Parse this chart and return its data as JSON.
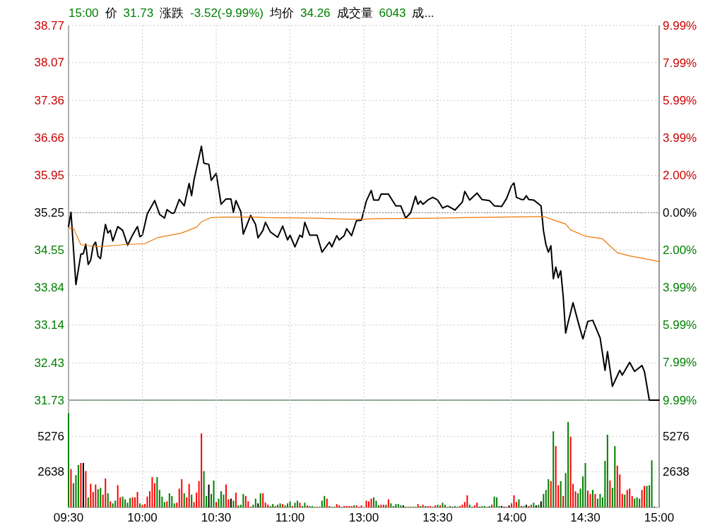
{
  "chart_data": [
    {
      "type": "line",
      "annotations": [
        "15:00",
        "价",
        "31.73",
        "涨跌",
        "-3.52(-9.99%)",
        "均价",
        "34.26",
        "成交量",
        "6043",
        "成..."
      ],
      "categories": [
        null,
        null,
        null,
        null,
        null,
        null,
        null,
        null,
        null,
        null,
        null,
        null,
        null,
        null,
        null,
        null,
        null,
        null,
        null,
        null,
        null,
        null,
        null,
        null,
        null,
        null,
        null,
        null,
        null,
        null,
        null,
        null,
        null,
        null,
        null,
        null,
        null,
        null,
        null,
        null,
        null,
        null,
        null,
        null,
        null,
        null,
        null,
        null,
        null,
        null,
        null,
        null,
        null,
        null,
        null,
        null,
        null,
        null,
        null,
        null,
        null,
        null,
        null,
        null,
        null,
        null,
        null,
        null,
        null,
        null,
        null,
        null,
        null,
        null,
        null,
        null,
        null,
        null,
        null,
        null,
        null,
        null,
        null,
        null,
        null,
        null,
        null,
        null,
        null,
        null,
        null,
        null,
        null,
        null,
        null,
        null,
        null,
        null,
        null,
        null,
        null,
        null,
        null,
        null,
        null,
        null,
        null,
        null,
        null,
        null,
        null,
        null,
        null,
        null,
        null,
        null,
        null,
        null,
        null,
        null,
        null,
        null,
        null,
        null,
        null,
        null,
        null,
        null,
        null,
        null,
        null,
        null,
        null,
        null,
        null,
        null,
        null,
        null,
        null,
        null,
        null,
        null,
        null,
        null,
        null,
        null,
        null,
        null,
        null,
        null,
        null,
        null,
        null,
        null,
        null,
        null,
        null,
        null,
        null,
        null,
        null,
        null,
        null,
        null,
        null,
        null,
        null,
        null,
        null,
        null,
        null,
        null,
        null,
        null,
        null,
        null,
        null,
        null,
        null,
        null,
        null,
        null,
        null,
        null,
        null,
        null,
        null,
        null,
        null,
        null,
        null,
        null,
        null,
        null,
        null,
        null,
        null,
        null,
        null,
        null,
        null,
        null,
        null,
        null,
        null,
        null,
        null,
        null,
        null,
        null,
        null,
        null,
        null,
        null,
        null,
        null,
        null,
        null,
        null,
        null,
        null,
        null,
        null,
        null,
        null,
        null,
        null,
        null,
        null,
        null,
        null,
        null,
        null,
        null,
        null,
        null,
        null,
        null,
        null,
        null,
        null
      ],
      "ylim": [
        31.73,
        38.77
      ],
      "y2lim": [
        -9.99,
        9.99
      ],
      "grid": true,
      "tick_labels": "y",
      "yticks": [
        31.73,
        32.43,
        33.14,
        33.84,
        34.55,
        35.25,
        35.95,
        36.66,
        37.36,
        38.07,
        38.77
      ],
      "y2ticks": [
        {
          "value": -9.99,
          "label": "9.99%"
        },
        {
          "value": -7.99,
          "label": "7.99%"
        },
        {
          "value": -5.99,
          "label": "5.99%"
        },
        {
          "value": -3.99,
          "label": "3.99%"
        },
        {
          "value": -2.0,
          "label": "2.00%"
        },
        {
          "value": 0,
          "label": "0.00%"
        },
        {
          "value": 2.0,
          "label": "2.00%"
        },
        {
          "value": 3.99,
          "label": "3.99%"
        },
        {
          "value": 5.99,
          "label": "5.99%"
        },
        {
          "value": 7.99,
          "label": "7.99%"
        },
        {
          "value": 9.99,
          "label": "9.99%"
        }
      ],
      "ref_lines": [
        {
          "axis": "y",
          "value": 35.25,
          "color": "#808080",
          "line_style": "dotted"
        }
      ],
      "series": [
        {
          "color": "#000000",
          "values": [
            34.99,
            35.26,
            null,
            33.9,
            null,
            34.47,
            34.48,
            34.66,
            34.28,
            34.36,
            34.63,
            34.7,
            34.43,
            34.39,
            34.74,
            35.03,
            34.87,
            34.92,
            34.72,
            null,
            34.99,
            null,
            34.92,
            null,
            34.64,
            null,
            34.83,
            null,
            34.99,
            34.8,
            34.83,
            null,
            35.23,
            null,
            null,
            35.48,
            null,
            35.22,
            null,
            35.15,
            35.31,
            null,
            35.24,
            35.25,
            null,
            35.5,
            null,
            35.38,
            null,
            35.8,
            35.57,
            35.87,
            null,
            null,
            36.5,
            36.18,
            null,
            36.16,
            35.86,
            null,
            35.99,
            null,
            35.41,
            null,
            35.51,
            null,
            35.51,
            35.26,
            35.48,
            null,
            35.27,
            34.85,
            null,
            null,
            35.2,
            null,
            35.03,
            34.78,
            null,
            34.92,
            35.07,
            null,
            34.89,
            null,
            null,
            34.79,
            null,
            35.0,
            null,
            34.74,
            34.83,
            null,
            34.61,
            null,
            34.83,
            34.79,
            35.07,
            null,
            34.83,
            null,
            null,
            34.83,
            null,
            34.51,
            null,
            null,
            34.7,
            34.61,
            null,
            34.82,
            34.74,
            null,
            34.82,
            34.95,
            null,
            34.82,
            null,
            35.1,
            null,
            35.11,
            null,
            35.47,
            null,
            35.67,
            35.49,
            null,
            35.49,
            35.6,
            null,
            null,
            35.6,
            null,
            null,
            35.38,
            null,
            35.38,
            null,
            35.15,
            null,
            35.25,
            null,
            35.56,
            35.41,
            35.47,
            35.41,
            null,
            35.49,
            null,
            35.54,
            null,
            35.49,
            null,
            35.34,
            null,
            35.38,
            null,
            null,
            35.3,
            null,
            null,
            35.45,
            35.65,
            null,
            35.49,
            null,
            null,
            35.62,
            null,
            35.5,
            null,
            null,
            35.48,
            null,
            35.38,
            null,
            null,
            35.37,
            null,
            35.52,
            null,
            35.76,
            35.81,
            35.54,
            null,
            35.5,
            35.5,
            35.57,
            35.5,
            null,
            35.49,
            null,
            null,
            35.38,
            34.91,
            34.65,
            34.51,
            34.63,
            34.01,
            34.23,
            34.03,
            34.16,
            33.68,
            32.99,
            33.19,
            null,
            33.56,
            null,
            33.21,
            null,
            32.88,
            null,
            33.21,
            null,
            33.23,
            null,
            null,
            32.9,
            null,
            32.29,
            32.64,
            null,
            31.99,
            null,
            null,
            32.29,
            32.2,
            null,
            null,
            32.44,
            null,
            32.27,
            null,
            null,
            32.38,
            32.27,
            null,
            31.73,
            null,
            null,
            null,
            31.73
          ]
        },
        {
          "color": "#f07800",
          "values": [
            34.96,
            null,
            34.96,
            null,
            null,
            34.65,
            null,
            null,
            null,
            null,
            null,
            null,
            34.61,
            null,
            null,
            null,
            null,
            null,
            null,
            null,
            null,
            null,
            34.65,
            null,
            null,
            null,
            null,
            null,
            null,
            null,
            null,
            34.67,
            null,
            null,
            null,
            null,
            34.78,
            null,
            null,
            null,
            null,
            null,
            null,
            null,
            null,
            null,
            34.87,
            null,
            null,
            null,
            null,
            null,
            34.98,
            null,
            35.08,
            null,
            null,
            null,
            35.16,
            null,
            null,
            null,
            null,
            35.17,
            null,
            null,
            null,
            null,
            null,
            null,
            null,
            null,
            null,
            null,
            null,
            null,
            null,
            35.17,
            null,
            null,
            35.16,
            null,
            null,
            null,
            null,
            null,
            null,
            null,
            null,
            null,
            null,
            null,
            null,
            null,
            null,
            null,
            null,
            null,
            null,
            null,
            35.15,
            null,
            null,
            null,
            null,
            null,
            null,
            null,
            null,
            null,
            null,
            null,
            null,
            null,
            null,
            35.13,
            null,
            null,
            null,
            35.13,
            null,
            null,
            null,
            null,
            null,
            35.14,
            null,
            null,
            null,
            null,
            null,
            null,
            null,
            null,
            null,
            null,
            null,
            null,
            null,
            null,
            null,
            null,
            null,
            null,
            null,
            null,
            null,
            null,
            null,
            null,
            35.15,
            null,
            null,
            null,
            null,
            null,
            null,
            null,
            null,
            null,
            35.16,
            null,
            null,
            null,
            null,
            null,
            null,
            null,
            null,
            null,
            null,
            null,
            null,
            null,
            null,
            null,
            null,
            null,
            null,
            null,
            null,
            null,
            null,
            null,
            null,
            null,
            null,
            null,
            null,
            null,
            null,
            null,
            null,
            35.18,
            null,
            null,
            null,
            null,
            35.1,
            null,
            null,
            null,
            35.04,
            null,
            34.93,
            null,
            null,
            null,
            null,
            null,
            34.81,
            null,
            null,
            null,
            null,
            null,
            null,
            34.76,
            null,
            34.67,
            null,
            null,
            null,
            34.5,
            null,
            null,
            null,
            null,
            34.44,
            null,
            null,
            null,
            null,
            null,
            null,
            null,
            34.37,
            null,
            null,
            null,
            34.33
          ]
        }
      ]
    },
    {
      "type": "bar",
      "ylim": [
        0,
        7914
      ],
      "y2lim": [
        0,
        7914
      ],
      "grid": true,
      "categories": [
        "09:30",
        null,
        null,
        null,
        null,
        null,
        null,
        null,
        null,
        null,
        null,
        null,
        null,
        null,
        null,
        null,
        null,
        null,
        null,
        null,
        null,
        null,
        null,
        null,
        null,
        null,
        null,
        null,
        null,
        null,
        "10:00",
        null,
        null,
        null,
        null,
        null,
        null,
        null,
        null,
        null,
        null,
        null,
        null,
        null,
        null,
        null,
        null,
        null,
        null,
        null,
        null,
        null,
        null,
        null,
        null,
        null,
        null,
        null,
        null,
        null,
        "10:30",
        null,
        null,
        null,
        null,
        null,
        null,
        null,
        null,
        null,
        null,
        null,
        null,
        null,
        null,
        null,
        null,
        null,
        null,
        null,
        null,
        null,
        null,
        null,
        null,
        null,
        null,
        null,
        null,
        null,
        "11:00",
        null,
        null,
        null,
        null,
        null,
        null,
        null,
        null,
        null,
        null,
        null,
        null,
        null,
        null,
        null,
        null,
        null,
        null,
        null,
        null,
        null,
        null,
        null,
        null,
        null,
        null,
        null,
        null,
        null,
        "13:00",
        null,
        null,
        null,
        null,
        null,
        null,
        null,
        null,
        null,
        null,
        null,
        null,
        null,
        null,
        null,
        null,
        null,
        null,
        null,
        null,
        null,
        null,
        null,
        null,
        null,
        null,
        null,
        null,
        null,
        "13:30",
        null,
        null,
        null,
        null,
        null,
        null,
        null,
        null,
        null,
        null,
        null,
        null,
        null,
        null,
        null,
        null,
        null,
        null,
        null,
        null,
        null,
        null,
        null,
        null,
        null,
        null,
        null,
        null,
        null,
        "14:00",
        null,
        null,
        null,
        null,
        null,
        null,
        null,
        null,
        null,
        null,
        null,
        null,
        null,
        null,
        null,
        null,
        null,
        null,
        null,
        null,
        null,
        null,
        null,
        null,
        null,
        null,
        null,
        null,
        null,
        "14:30",
        null,
        null,
        null,
        null,
        null,
        null,
        null,
        null,
        null,
        null,
        null,
        null,
        null,
        null,
        null,
        null,
        null,
        null,
        null,
        null,
        null,
        null,
        null,
        null,
        null,
        null,
        null,
        null,
        null,
        "15:00"
      ],
      "yticks": [
        2638,
        5276
      ],
      "y2ticks": [
        2638,
        5276
      ],
      "values": [
        7000,
        2850,
        1800,
        2400,
        3150,
        3300,
        3300,
        2700,
        750,
        1750,
        1150,
        1700,
        1350,
        1450,
        950,
        2150,
        1050,
        450,
        300,
        500,
        1650,
        750,
        800,
        600,
        350,
        700,
        750,
        750,
        1150,
        300,
        200,
        250,
        800,
        1200,
        2250,
        1800,
        2250,
        1300,
        800,
        400,
        450,
        1050,
        850,
        300,
        350,
        1400,
        2100,
        1050,
        750,
        1750,
        950,
        400,
        1100,
        1950,
        5500,
        2700,
        850,
        1700,
        1000,
        2000,
        400,
        650,
        1200,
        950,
        1700,
        600,
        650,
        500,
        1100,
        150,
        200,
        1000,
        850,
        450,
        50,
        200,
        650,
        300,
        1050,
        1050,
        350,
        200,
        100,
        250,
        100,
        200,
        300,
        250,
        150,
        300,
        450,
        100,
        350,
        500,
        350,
        100,
        350,
        150,
        100,
        100,
        50,
        50,
        50,
        500,
        850,
        650,
        100,
        50,
        50,
        250,
        150,
        50,
        100,
        100,
        100,
        100,
        150,
        150,
        50,
        150,
        null,
        500,
        450,
        650,
        750,
        500,
        150,
        200,
        200,
        200,
        600,
        300,
        100,
        250,
        250,
        150,
        150,
        50,
        50,
        50,
        50,
        50,
        250,
        100,
        200,
        100,
        100,
        100,
        50,
        150,
        200,
        150,
        350,
        200,
        50,
        100,
        50,
        100,
        50,
        100,
        200,
        400,
        900,
        200,
        50,
        150,
        350,
        50,
        100,
        100,
        50,
        100,
        200,
        800,
        750,
        100,
        100,
        50,
        50,
        150,
        300,
        900,
        400,
        600,
        100,
        100,
        200,
        100,
        200,
        350,
        150,
        200,
        450,
        1000,
        1300,
        2100,
        1950,
        5650,
        4550,
        1650,
        1950,
        850,
        2550,
        6350,
        5250,
        1750,
        1200,
        1050,
        1400,
        2300,
        3300,
        1250,
        1000,
        1300,
        1000,
        650,
        1000,
        750,
        3450,
        5400,
        2000,
        1450,
        4550,
        3100,
        2450,
        1000,
        950,
        1300,
        1400,
        850,
        650,
        750,
        650,
        1300,
        1600,
        1600,
        1650,
        3500,
        50,
        null,
        null
      ],
      "colors": [
        "#008000",
        "#ff0000",
        "#008000",
        "#008000",
        "#008000",
        "#ff0000",
        "#000000",
        "#ff0000",
        "#008000",
        "#ff0000",
        "#ff0000",
        "#ff0000",
        "#008000",
        "#008000",
        "#ff0000",
        "#ff0000",
        "#008000",
        "#ff0000",
        "#008000",
        "#008000",
        "#ff0000",
        "#ff0000",
        "#008000",
        "#008000",
        "#008000",
        "#008000",
        "#ff0000",
        "#ff0000",
        "#ff0000",
        "#008000",
        "#ff0000",
        "#ff0000",
        "#ff0000",
        "#ff0000",
        "#ff0000",
        "#ff0000",
        "#008000",
        "#008000",
        "#008000",
        "#008000",
        "#ff0000",
        "#008000",
        "#008000",
        "#008000",
        "#ff0000",
        "#ff0000",
        "#ff0000",
        "#008000",
        "#ff0000",
        "#ff0000",
        "#008000",
        "#ff0000",
        "#ff0000",
        "#ff0000",
        "#ff0000",
        "#008000",
        "#008000",
        "#000000",
        "#008000",
        "#008000",
        "#ff0000",
        "#008000",
        "#008000",
        "#008000",
        "#ff0000",
        "#ff0000",
        "#000000",
        "#008000",
        "#ff0000",
        "#008000",
        "#008000",
        "#008000",
        "#ff0000",
        "#ff0000",
        "#ff0000",
        "#008000",
        "#008000",
        "#000000",
        "#008000",
        "#ff0000",
        "#ff0000",
        "#ff0000",
        "#008000",
        "#008000",
        "#ff0000",
        "#008000",
        "#008000",
        "#ff0000",
        "#008000",
        "#008000",
        "#008000",
        "#ff0000",
        "#008000",
        "#008000",
        "#ff0000",
        "#008000",
        "#008000",
        "#ff0000",
        "#008000",
        "#008000",
        "#008000",
        "#ff0000",
        "#008000",
        "#008000",
        "#008000",
        "#ff0000",
        "#ff0000",
        "#008000",
        "#008000",
        "#ff0000",
        "#ff0000",
        "#008000",
        "#ff0000",
        "#ff0000",
        "#ff0000",
        "#ff0000",
        "#008000",
        "#ff0000",
        "#ff0000",
        "#ff0000",
        null,
        "#ff0000",
        "#ff0000",
        "#ff0000",
        "#008000",
        "#008000",
        "#008000",
        "#ff0000",
        "#ff0000",
        "#008000",
        "#ff0000",
        "#008000",
        "#008000",
        "#008000",
        "#008000",
        "#008000",
        "#000000",
        "#008000",
        "#008000",
        "#ff0000",
        "#008000",
        "#008000",
        "#ff0000",
        "#008000",
        "#ff0000",
        "#008000",
        "#ff0000",
        "#ff0000",
        "#008000",
        "#ff0000",
        "#008000",
        "#ff0000",
        "#008000",
        "#008000",
        "#ff0000",
        "#008000",
        "#000000",
        "#008000",
        "#008000",
        "#ff0000",
        "#ff0000",
        "#ff0000",
        "#ff0000",
        "#008000",
        "#008000",
        "#ff0000",
        "#ff0000",
        "#000000",
        "#008000",
        "#008000",
        "#008000",
        "#008000",
        "#ff0000",
        "#008000",
        "#008000",
        "#008000",
        "#000000",
        "#000000",
        "#ff0000",
        "#000000",
        "#ff0000",
        "#ff0000",
        "#ff0000",
        "#008000",
        "#ff0000",
        "#008000",
        "#000000",
        "#ff0000",
        "#008000",
        "#008000",
        "#000000",
        "#008000",
        "#000000",
        "#008000",
        "#008000",
        "#008000",
        "#ff0000",
        "#008000",
        "#ff0000",
        "#ff0000",
        "#008000",
        "#ff0000",
        "#008000",
        "#008000",
        "#ff0000",
        "#ff0000",
        "#ff0000",
        "#008000",
        "#008000",
        "#008000",
        "#008000",
        "#ff0000",
        "#ff0000",
        "#008000",
        "#ff0000",
        "#008000",
        "#008000",
        "#008000",
        "#008000",
        "#008000",
        "#ff0000",
        "#008000",
        "#008000",
        "#ff0000",
        "#ff0000",
        "#ff0000",
        "#008000",
        "#ff0000",
        "#ff0000",
        "#ff0000",
        "#008000",
        "#008000",
        "#008000",
        "#ff0000",
        "#ff0000",
        "#008000",
        "#008000",
        "#008000",
        "#000000",
        null,
        null
      ]
    }
  ]
}
